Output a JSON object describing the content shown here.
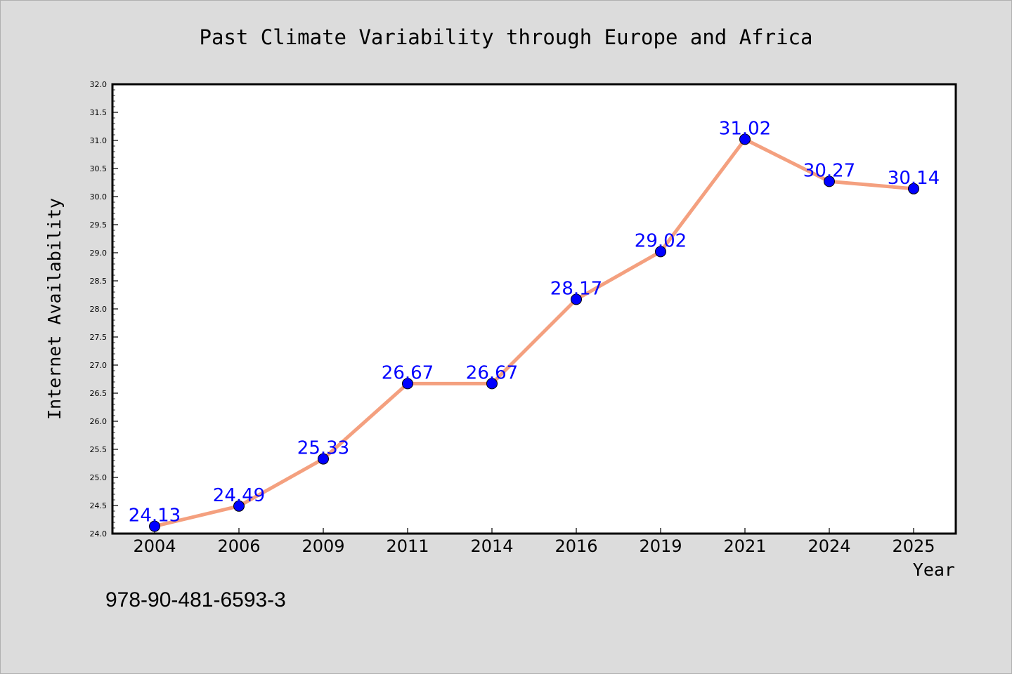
{
  "chart_data": {
    "type": "line",
    "title": "Past Climate Variability through Europe and Africa",
    "xlabel": "Year",
    "ylabel": "Internet Availability",
    "categories": [
      "2004",
      "2006",
      "2009",
      "2011",
      "2014",
      "2016",
      "2019",
      "2021",
      "2024",
      "2025"
    ],
    "series": [
      {
        "values": [
          24.13,
          24.49,
          25.33,
          26.67,
          26.67,
          28.17,
          29.02,
          31.02,
          30.27,
          30.14
        ]
      }
    ],
    "data_labels": [
      "24.13",
      "24.49",
      "25.33",
      "26.67",
      "26.67",
      "28.17",
      "29.02",
      "31.02",
      "30.27",
      "30.14"
    ],
    "ylim": [
      24.0,
      32.0
    ],
    "yticks": [
      "24.0",
      "24.5",
      "25.0",
      "25.5",
      "26.0",
      "26.5",
      "27.0",
      "27.5",
      "28.0",
      "28.5",
      "29.0",
      "29.5",
      "30.0",
      "30.5",
      "31.0",
      "31.5",
      "32.0"
    ],
    "grid": false,
    "legend": "none",
    "colors": {
      "line": "#f4a07f",
      "marker": "#0000ff",
      "data_label": "#0000ff",
      "background": "#dcdcdc",
      "plot_background": "#ffffff"
    }
  },
  "footer": {
    "isbn": "978-90-481-6593-3"
  }
}
